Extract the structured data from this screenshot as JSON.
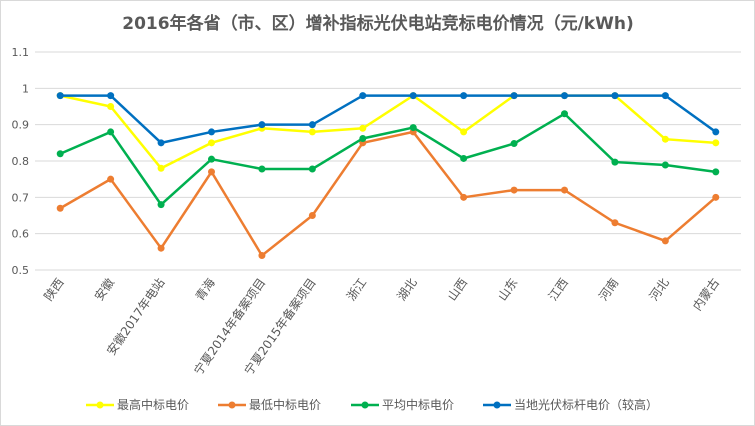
{
  "chart_data": {
    "type": "line",
    "title": "2016年各省（市、区）增补指标光伏电站竞标电价情况（元/kWh)",
    "xlabel": "",
    "ylabel": "",
    "ylim": [
      0.5,
      1.1
    ],
    "yticks": [
      "0.5",
      "0.6",
      "0.7",
      "0.8",
      "0.9",
      "1",
      "1.1"
    ],
    "grid": true,
    "legend_position": "bottom",
    "categories": [
      "陕西",
      "安徽",
      "安徽2017年电站",
      "青海",
      "宁夏2014年备案项目",
      "宁夏2015年备案项目",
      "浙江",
      "湖北",
      "山西",
      "山东",
      "江西",
      "河南",
      "河北",
      "内蒙古"
    ],
    "series": [
      {
        "name": "最高中标电价",
        "color": "#ffff00",
        "values": [
          0.98,
          0.95,
          0.78,
          0.85,
          0.89,
          0.88,
          0.89,
          0.98,
          0.88,
          0.98,
          0.98,
          0.98,
          0.86,
          0.85
        ]
      },
      {
        "name": "最低中标电价",
        "color": "#ed7d31",
        "values": [
          0.67,
          0.75,
          0.56,
          0.77,
          0.54,
          0.65,
          0.85,
          0.88,
          0.7,
          0.72,
          0.72,
          0.63,
          0.58,
          0.7
        ]
      },
      {
        "name": "平均中标电价",
        "color": "#00b050",
        "values": [
          0.82,
          0.88,
          0.68,
          0.805,
          0.778,
          0.778,
          0.862,
          0.892,
          0.807,
          0.848,
          0.93,
          0.797,
          0.789,
          0.77
        ]
      },
      {
        "name": "当地光伏标杆电价（较高）",
        "color": "#0070c0",
        "values": [
          0.98,
          0.98,
          0.85,
          0.88,
          0.9,
          0.9,
          0.98,
          0.98,
          0.98,
          0.98,
          0.98,
          0.98,
          0.98,
          0.88
        ]
      }
    ]
  }
}
